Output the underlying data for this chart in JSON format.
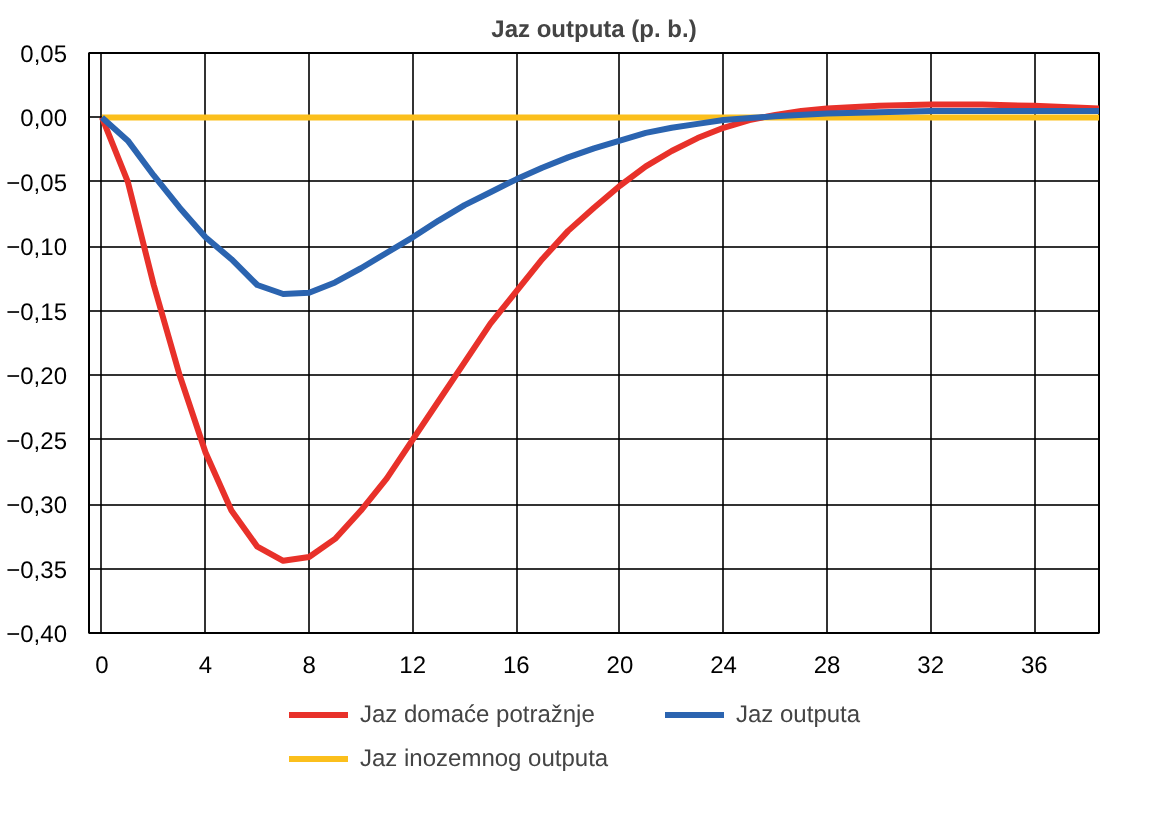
{
  "chart_data": {
    "type": "line",
    "title": "Jaz outputa (p. b.)",
    "xlim": [
      -0.5,
      38.5
    ],
    "xticks": [
      0,
      4,
      8,
      12,
      16,
      20,
      24,
      28,
      32,
      36
    ],
    "ylim": [
      -0.4,
      0.05
    ],
    "yticks": [
      {
        "value": 0.05,
        "label": "0,05"
      },
      {
        "value": 0,
        "label": "0,00"
      },
      {
        "value": -0.05,
        "label": "−0,05"
      },
      {
        "value": -0.1,
        "label": "−0,10"
      },
      {
        "value": -0.15,
        "label": "−0,15"
      },
      {
        "value": -0.2,
        "label": "−0,20"
      },
      {
        "value": -0.25,
        "label": "−0,25"
      },
      {
        "value": -0.3,
        "label": "−0,30"
      },
      {
        "value": -0.35,
        "label": "−0,35"
      },
      {
        "value": -0.4,
        "label": "−0,40"
      }
    ],
    "grid": true,
    "legend": "bottom",
    "line_style": "solid",
    "marker": "none",
    "series": [
      {
        "name": "Jaz domaće potražnje",
        "color": "#e8312a",
        "x": [
          0,
          1,
          2,
          3,
          4,
          5,
          6,
          7,
          8,
          9,
          10,
          11,
          12,
          13,
          14,
          15,
          16,
          17,
          18,
          19,
          20,
          21,
          22,
          23,
          24,
          25,
          26,
          27,
          28,
          30,
          32,
          34,
          36,
          38.5
        ],
        "values": [
          0,
          -0.05,
          -0.13,
          -0.2,
          -0.26,
          -0.305,
          -0.333,
          -0.344,
          -0.341,
          -0.327,
          -0.305,
          -0.28,
          -0.25,
          -0.22,
          -0.19,
          -0.16,
          -0.135,
          -0.11,
          -0.088,
          -0.07,
          -0.053,
          -0.038,
          -0.026,
          -0.016,
          -0.008,
          -0.002,
          0.002,
          0.005,
          0.007,
          0.009,
          0.01,
          0.01,
          0.009,
          0.007
        ]
      },
      {
        "name": "Jaz outputa",
        "color": "#2b64b0",
        "x": [
          0,
          1,
          2,
          3,
          4,
          5,
          6,
          7,
          8,
          9,
          10,
          11,
          12,
          13,
          14,
          15,
          16,
          17,
          18,
          19,
          20,
          21,
          22,
          23,
          24,
          26,
          28,
          30,
          32,
          36,
          38.5
        ],
        "values": [
          0,
          -0.018,
          -0.045,
          -0.07,
          -0.093,
          -0.11,
          -0.13,
          -0.137,
          -0.136,
          -0.128,
          -0.117,
          -0.105,
          -0.093,
          -0.08,
          -0.068,
          -0.058,
          -0.048,
          -0.039,
          -0.031,
          -0.024,
          -0.018,
          -0.012,
          -0.008,
          -0.005,
          -0.002,
          0.001,
          0.003,
          0.004,
          0.005,
          0.005,
          0.005
        ]
      },
      {
        "name": "Jaz inozemnog outputa",
        "color": "#fbbf1c",
        "x": [
          0,
          38.5
        ],
        "values": [
          0,
          0
        ]
      }
    ]
  }
}
